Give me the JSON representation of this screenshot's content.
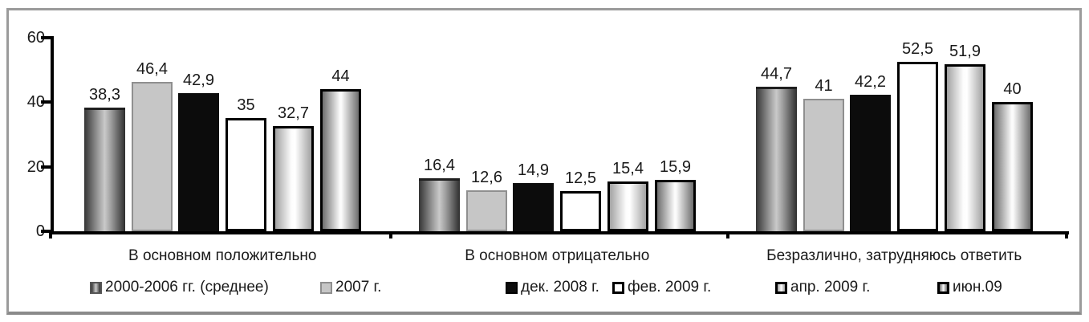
{
  "chart_data": {
    "type": "bar",
    "title": "",
    "categories": [
      "В основном положительно",
      "В основном отрицательно",
      "Безразлично, затрудняюсь ответить"
    ],
    "series": [
      {
        "name": "2000-2006 гг. (среднее)",
        "values": [
          38.3,
          16.4,
          44.7
        ],
        "labels": [
          "38,3",
          "16,4",
          "44,7"
        ]
      },
      {
        "name": "2007 г.",
        "values": [
          46.4,
          12.6,
          41
        ],
        "labels": [
          "46,4",
          "12,6",
          "41"
        ]
      },
      {
        "name": "дек. 2008 г.",
        "values": [
          42.9,
          14.9,
          42.2
        ],
        "labels": [
          "42,9",
          "14,9",
          "42,2"
        ]
      },
      {
        "name": "фев. 2009 г.",
        "values": [
          35,
          12.5,
          52.5
        ],
        "labels": [
          "35",
          "12,5",
          "52,5"
        ]
      },
      {
        "name": "апр. 2009 г.",
        "values": [
          32.7,
          15.4,
          51.9
        ],
        "labels": [
          "32,7",
          "15,4",
          "51,9"
        ]
      },
      {
        "name": "июн.09",
        "values": [
          44,
          15.9,
          40
        ],
        "labels": [
          "44",
          "15,9",
          "40"
        ]
      }
    ],
    "y_axis": {
      "ticks": [
        0,
        20,
        40,
        60
      ],
      "min": 0,
      "max": 60
    },
    "ylim": [
      0,
      60
    ],
    "grid": false,
    "legend_position": "bottom",
    "bar_styles": [
      "gray-cylinder-gradient",
      "flat-light-gray",
      "solid-black",
      "white-black-outline",
      "light-cylinder-black-outline",
      "dark-cylinder-black-outline"
    ]
  },
  "palette": {
    "frame_border": "#9b9b9b",
    "axis": "#000000",
    "text": "#1a1a1a",
    "black_bar": "#0c0c0c",
    "light_gray_bar": "#c6c6c6",
    "gradient_dark_edge": "#343434",
    "gradient_light_center": "#c9c9c9",
    "white_bar": "#ffffff"
  }
}
